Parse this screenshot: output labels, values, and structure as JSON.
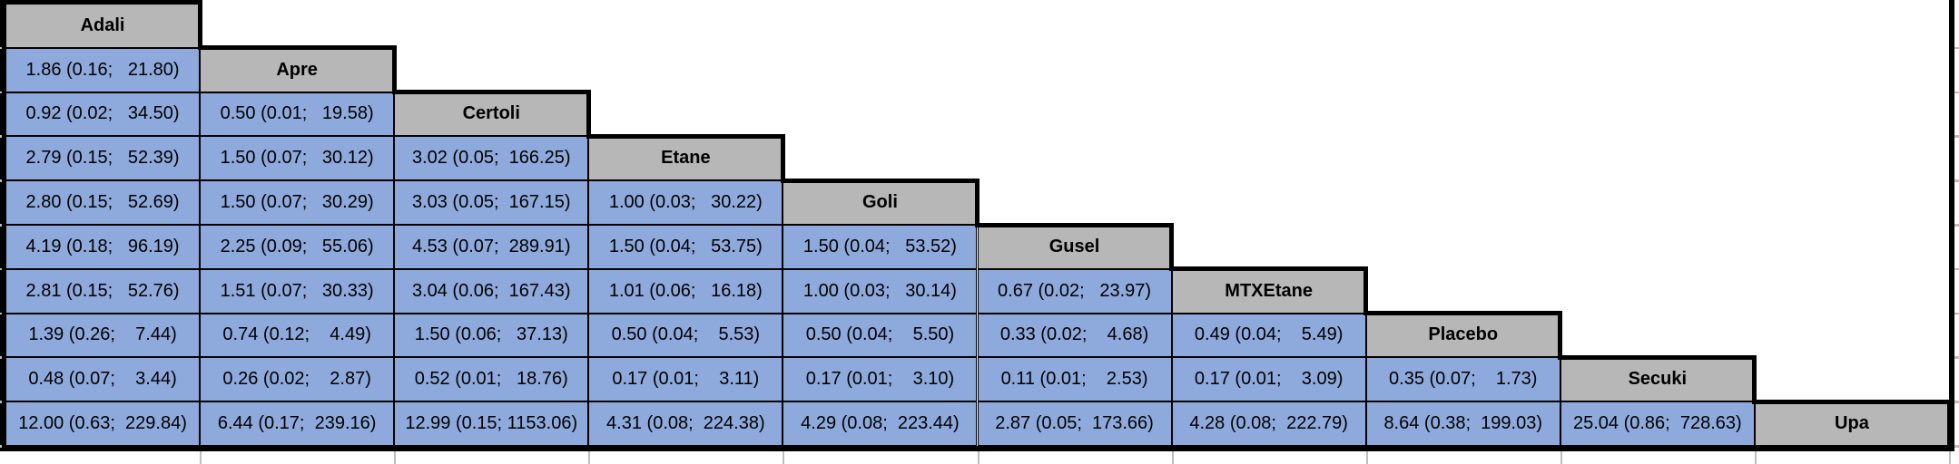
{
  "chart_data": {
    "type": "table",
    "title": "",
    "treatments": [
      "Adali",
      "Apre",
      "Certoli",
      "Etane",
      "Goli",
      "Gusel",
      "MTXEtane",
      "Placebo",
      "Secuki",
      "Upa"
    ],
    "cell_format": "estimate (lower; upper)",
    "rows": [
      {
        "treatment": "Adali",
        "cells": []
      },
      {
        "treatment": "Apre",
        "cells": [
          "1.86 (0.16;   21.80)"
        ]
      },
      {
        "treatment": "Certoli",
        "cells": [
          "0.92 (0.02;   34.50)",
          "0.50 (0.01;   19.58)"
        ]
      },
      {
        "treatment": "Etane",
        "cells": [
          "2.79 (0.15;   52.39)",
          "1.50 (0.07;   30.12)",
          "3.02 (0.05;  166.25)"
        ]
      },
      {
        "treatment": "Goli",
        "cells": [
          "2.80 (0.15;   52.69)",
          "1.50 (0.07;   30.29)",
          "3.03 (0.05;  167.15)",
          "1.00 (0.03;   30.22)"
        ]
      },
      {
        "treatment": "Gusel",
        "cells": [
          "4.19 (0.18;   96.19)",
          "2.25 (0.09;   55.06)",
          "4.53 (0.07;  289.91)",
          "1.50 (0.04;   53.75)",
          "1.50 (0.04;   53.52)"
        ]
      },
      {
        "treatment": "MTXEtane",
        "cells": [
          "2.81 (0.15;   52.76)",
          "1.51 (0.07;   30.33)",
          "3.04 (0.06;  167.43)",
          "1.01 (0.06;   16.18)",
          "1.00 (0.03;   30.14)",
          "0.67 (0.02;   23.97)"
        ]
      },
      {
        "treatment": "Placebo",
        "cells": [
          "1.39 (0.26;    7.44)",
          "0.74 (0.12;    4.49)",
          "1.50 (0.06;   37.13)",
          "0.50 (0.04;    5.53)",
          "0.50 (0.04;    5.50)",
          "0.33 (0.02;    4.68)",
          "0.49 (0.04;    5.49)"
        ]
      },
      {
        "treatment": "Secuki",
        "cells": [
          "0.48 (0.07;    3.44)",
          "0.26 (0.02;    2.87)",
          "0.52 (0.01;   18.76)",
          "0.17 (0.01;    3.11)",
          "0.17 (0.01;    3.10)",
          "0.11 (0.01;    2.53)",
          "0.17 (0.01;    3.09)",
          "0.35 (0.07;    1.73)"
        ]
      },
      {
        "treatment": "Upa",
        "cells": [
          "12.00 (0.63;  229.84)",
          "6.44 (0.17;  239.16)",
          "12.99 (0.15; 1153.06)",
          "4.31 (0.08;  224.38)",
          "4.29 (0.08;  223.44)",
          "2.87 (0.05;  173.66)",
          "4.28 (0.08;  222.79)",
          "8.64 (0.38;  199.03)",
          "25.04 (0.86;  728.63)"
        ]
      }
    ],
    "layout": "lower-triangle league table with treatment names on the diagonal"
  },
  "style": {
    "value_cell_bg": "#8EA9DB",
    "header_cell_bg": "#B7B7B7",
    "border_color": "#000000",
    "gridline_color": "#BDBDBD"
  }
}
